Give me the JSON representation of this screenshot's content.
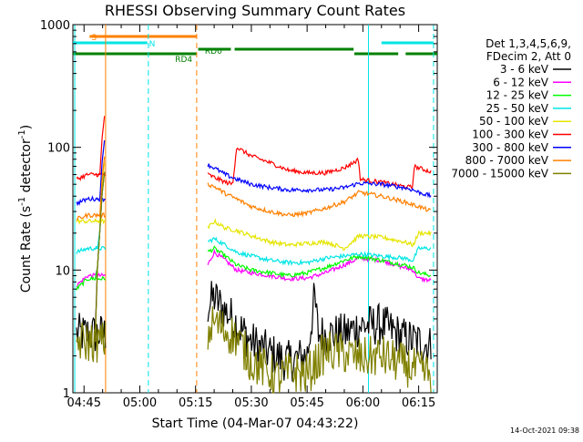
{
  "chart_data": {
    "type": "line",
    "title": "RHESSI Observing Summary Count Rates",
    "xlabel": "Start Time (04-Mar-07 04:43:22)",
    "ylabel": "Count Rate (s⁻¹ detector⁻¹)",
    "ylabel_main": "Count Rate (s",
    "ylabel_sup1": "-1",
    "ylabel_mid": " detector",
    "ylabel_sup2": "-1",
    "ylabel_end": ")",
    "y_scale": "log",
    "ylim": [
      1,
      1000
    ],
    "xlim_minutes": [
      -3,
      95
    ],
    "x_unit": "minutes after 04:45",
    "x_ticks": [
      {
        "t": 0,
        "label": "04:45"
      },
      {
        "t": 15,
        "label": "05:00"
      },
      {
        "t": 30,
        "label": "05:15"
      },
      {
        "t": 45,
        "label": "05:30"
      },
      {
        "t": 60,
        "label": "05:45"
      },
      {
        "t": 75,
        "label": "06:00"
      },
      {
        "t": 90,
        "label": "06:15"
      }
    ],
    "y_ticks": [
      {
        "v": 1,
        "label": "1"
      },
      {
        "v": 10,
        "label": "10"
      },
      {
        "v": 100,
        "label": "100"
      },
      {
        "v": 1000,
        "label": "1000"
      }
    ],
    "legend_title_lines": [
      "Det 1,3,4,5,6,9,",
      "FDecim 2, Att 0"
    ],
    "legend_position": "right",
    "series": [
      {
        "name": "3 - 6 keV",
        "color": "#000000",
        "points": [
          [
            -2,
            3
          ],
          [
            1,
            3
          ],
          [
            5.5,
            3
          ],
          [
            33.3,
            5
          ],
          [
            35,
            6
          ],
          [
            37,
            5
          ],
          [
            40,
            4
          ],
          [
            45,
            2.6
          ],
          [
            50,
            2.1
          ],
          [
            55,
            1.8
          ],
          [
            60,
            2
          ],
          [
            62,
            6
          ],
          [
            63,
            3
          ],
          [
            65,
            3
          ],
          [
            70,
            3
          ],
          [
            74,
            3.5
          ],
          [
            80,
            3.6
          ],
          [
            86,
            2.8
          ],
          [
            90,
            2.6
          ],
          [
            93.5,
            2.4
          ]
        ]
      },
      {
        "name": "6 - 12 keV",
        "color": "#ff00ff",
        "points": [
          [
            -2,
            7.5
          ],
          [
            1,
            9
          ],
          [
            5.5,
            9
          ],
          [
            33.3,
            11
          ],
          [
            35,
            14
          ],
          [
            38,
            12
          ],
          [
            41,
            10
          ],
          [
            45,
            9.5
          ],
          [
            50,
            9
          ],
          [
            55,
            8.5
          ],
          [
            60,
            8.6
          ],
          [
            65,
            9.5
          ],
          [
            70,
            11
          ],
          [
            74,
            12.5
          ],
          [
            80,
            12
          ],
          [
            86,
            10.5
          ],
          [
            88.5,
            10
          ],
          [
            90,
            8.5
          ],
          [
            93.5,
            8.2
          ]
        ]
      },
      {
        "name": "12 - 25 keV",
        "color": "#00ff00",
        "points": [
          [
            -2,
            7
          ],
          [
            1,
            8.5
          ],
          [
            5.5,
            8.5
          ],
          [
            33.3,
            14
          ],
          [
            35,
            15
          ],
          [
            38,
            13
          ],
          [
            41,
            11
          ],
          [
            45,
            10
          ],
          [
            50,
            9.5
          ],
          [
            55,
            9
          ],
          [
            60,
            9.5
          ],
          [
            65,
            10.5
          ],
          [
            70,
            12
          ],
          [
            74,
            13
          ],
          [
            80,
            12
          ],
          [
            86,
            11
          ],
          [
            88.5,
            10.5
          ],
          [
            90,
            9.5
          ],
          [
            93.5,
            9
          ]
        ]
      },
      {
        "name": "25 - 50 keV",
        "color": "#00e5e5",
        "points": [
          [
            -2,
            14
          ],
          [
            1,
            15
          ],
          [
            5.5,
            15
          ],
          [
            33.3,
            17
          ],
          [
            35,
            18
          ],
          [
            38,
            16
          ],
          [
            41,
            14
          ],
          [
            45,
            13
          ],
          [
            50,
            12
          ],
          [
            55,
            11.5
          ],
          [
            60,
            11.5
          ],
          [
            65,
            12.5
          ],
          [
            70,
            13
          ],
          [
            74,
            13.5
          ],
          [
            80,
            13
          ],
          [
            86,
            12.5
          ],
          [
            88.5,
            12
          ],
          [
            90,
            15
          ],
          [
            93.5,
            15
          ]
        ]
      },
      {
        "name": "50 - 100 keV",
        "color": "#e5e500",
        "points": [
          [
            -2,
            25
          ],
          [
            1,
            25
          ],
          [
            5.5,
            25
          ],
          [
            33.3,
            22
          ],
          [
            35,
            25
          ],
          [
            38,
            22
          ],
          [
            41,
            21
          ],
          [
            45,
            19
          ],
          [
            50,
            17
          ],
          [
            55,
            16
          ],
          [
            60,
            16.5
          ],
          [
            65,
            17
          ],
          [
            70,
            15
          ],
          [
            74,
            19
          ],
          [
            80,
            18.5
          ],
          [
            86,
            17
          ],
          [
            88.5,
            16
          ],
          [
            90,
            20
          ],
          [
            93.5,
            20
          ]
        ]
      },
      {
        "name": "100 - 300 keV",
        "color": "#ff0000",
        "points": [
          [
            -2,
            55
          ],
          [
            1,
            60
          ],
          [
            5.5,
            60
          ],
          [
            33.3,
            60
          ],
          [
            38,
            52
          ],
          [
            40,
            50
          ],
          [
            41,
            100
          ],
          [
            45,
            85
          ],
          [
            50,
            75
          ],
          [
            55,
            65
          ],
          [
            60,
            62
          ],
          [
            65,
            62
          ],
          [
            70,
            68
          ],
          [
            74,
            80
          ],
          [
            74.1,
            55
          ],
          [
            80,
            52
          ],
          [
            86,
            48
          ],
          [
            88.5,
            47
          ],
          [
            88.6,
            70
          ],
          [
            90,
            68
          ],
          [
            93.5,
            63
          ]
        ]
      },
      {
        "name": "300 - 800 keV",
        "color": "#0000ff",
        "points": [
          [
            -2,
            35
          ],
          [
            1,
            38
          ],
          [
            5.5,
            38
          ],
          [
            33.3,
            72
          ],
          [
            35,
            68
          ],
          [
            38,
            60
          ],
          [
            41,
            55
          ],
          [
            45,
            50
          ],
          [
            50,
            47
          ],
          [
            55,
            45
          ],
          [
            60,
            45
          ],
          [
            65,
            45
          ],
          [
            70,
            47
          ],
          [
            74,
            51
          ],
          [
            80,
            50
          ],
          [
            86,
            47
          ],
          [
            88.5,
            45
          ],
          [
            90,
            43
          ],
          [
            93.5,
            40
          ]
        ]
      },
      {
        "name": "800 - 7000 keV",
        "color": "#ff8000",
        "points": [
          [
            -2,
            26
          ],
          [
            1,
            28
          ],
          [
            5.5,
            28
          ],
          [
            33.3,
            50
          ],
          [
            35,
            48
          ],
          [
            38,
            42
          ],
          [
            41,
            38
          ],
          [
            45,
            33
          ],
          [
            50,
            30
          ],
          [
            55,
            28
          ],
          [
            60,
            29
          ],
          [
            65,
            32
          ],
          [
            70,
            36
          ],
          [
            74,
            43
          ],
          [
            80,
            40
          ],
          [
            86,
            36
          ],
          [
            88.5,
            34
          ],
          [
            90,
            33
          ],
          [
            93.5,
            30
          ]
        ]
      },
      {
        "name": "7000 - 15000 keV",
        "color": "#808000",
        "points": [
          [
            -2,
            2.6
          ],
          [
            1,
            2.6
          ],
          [
            5.5,
            2.6
          ],
          [
            33.3,
            3
          ],
          [
            35,
            3.8
          ],
          [
            38,
            3.2
          ],
          [
            41,
            2.8
          ],
          [
            45,
            1.8
          ],
          [
            48,
            1.6
          ],
          [
            52,
            1.3
          ],
          [
            56,
            1.5
          ],
          [
            60,
            1.4
          ],
          [
            65,
            2.2
          ],
          [
            70,
            2.1
          ],
          [
            74,
            1.9
          ],
          [
            80,
            2
          ],
          [
            86,
            1.7
          ],
          [
            90,
            1.5
          ],
          [
            93.5,
            1.4
          ]
        ]
      }
    ],
    "flare_spike": {
      "t_start": 3,
      "t_end": 5.5,
      "values": [
        30,
        60,
        120,
        180
      ]
    },
    "status_bars": [
      {
        "label": "S",
        "color": "#ff8000",
        "segments": [
          [
            1.5,
            30.3
          ]
        ],
        "label_at": 2
      },
      {
        "label": "N",
        "color": "#00e5e5",
        "segments": [
          [
            -3,
            17
          ],
          [
            80,
            94
          ]
        ],
        "label_at": 17.5
      },
      {
        "label": "RD0",
        "color": "#008000",
        "segments": [
          [
            30.7,
            39.5
          ],
          [
            40.5,
            72.5
          ]
        ],
        "label_at": 32.5
      },
      {
        "label": "RD4",
        "color": "#008000",
        "segments": [
          [
            -3,
            30.3
          ],
          [
            72.7,
            84.5
          ],
          [
            86.5,
            95
          ]
        ],
        "label_at": 24.5
      }
    ],
    "vertical_lines": [
      {
        "t": -2.5,
        "color": "#00e5e5",
        "style": "solid"
      },
      {
        "t": 5.8,
        "color": "#ff8000",
        "style": "solid"
      },
      {
        "t": 17.3,
        "color": "#00e5e5",
        "style": "dashed"
      },
      {
        "t": 30.3,
        "color": "#ff8000",
        "style": "dashed"
      },
      {
        "t": 76.5,
        "color": "#00e5e5",
        "style": "solid"
      },
      {
        "t": 94,
        "color": "#00e5e5",
        "style": "dashed"
      }
    ],
    "grid": false
  },
  "footer": {
    "timestamp": "14-Oct-2021 09:38"
  }
}
